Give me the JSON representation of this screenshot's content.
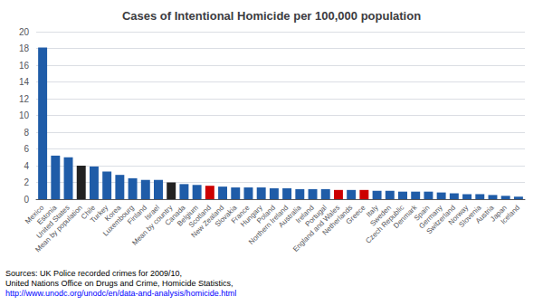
{
  "chart_data": {
    "type": "bar",
    "title": "Cases of Intentional Homicide per 100,000 population",
    "categories": [
      "Mexico",
      "Estonia",
      "United States",
      "Mean by population",
      "Chile",
      "Turkey",
      "Korea",
      "Luxembourg",
      "Finland",
      "Israel",
      "Mean by country",
      "Canada",
      "Belgium",
      "Scotland",
      "New Zealand",
      "Slovakia",
      "France",
      "Hungary",
      "Poland",
      "Northern Ireland",
      "Australia",
      "Ireland",
      "Portugal",
      "England and Wales",
      "Netherlands",
      "Greece",
      "Italy",
      "Sweden",
      "Czech Republic",
      "Denmark",
      "Spain",
      "Germany",
      "Switzerland",
      "Norway",
      "Slovenia",
      "Austria",
      "Japan",
      "Iceland"
    ],
    "values": [
      18.1,
      5.2,
      5.0,
      4.0,
      3.9,
      3.3,
      2.9,
      2.5,
      2.3,
      2.3,
      2.0,
      1.8,
      1.7,
      1.6,
      1.5,
      1.4,
      1.4,
      1.4,
      1.3,
      1.3,
      1.2,
      1.2,
      1.2,
      1.1,
      1.1,
      1.1,
      1.0,
      1.0,
      0.9,
      0.9,
      0.9,
      0.8,
      0.7,
      0.6,
      0.6,
      0.5,
      0.4,
      0.3
    ],
    "colors": [
      "#1F5CA8",
      "#1F5CA8",
      "#1F5CA8",
      "#222222",
      "#1F5CA8",
      "#1F5CA8",
      "#1F5CA8",
      "#1F5CA8",
      "#1F5CA8",
      "#1F5CA8",
      "#222222",
      "#1F5CA8",
      "#1F5CA8",
      "#CC0000",
      "#1F5CA8",
      "#1F5CA8",
      "#1F5CA8",
      "#1F5CA8",
      "#1F5CA8",
      "#1F5CA8",
      "#1F5CA8",
      "#1F5CA8",
      "#1F5CA8",
      "#CC0000",
      "#1F5CA8",
      "#CC0000",
      "#1F5CA8",
      "#1F5CA8",
      "#1F5CA8",
      "#1F5CA8",
      "#1F5CA8",
      "#1F5CA8",
      "#1F5CA8",
      "#1F5CA8",
      "#1F5CA8",
      "#1F5CA8",
      "#1F5CA8",
      "#1F5CA8"
    ],
    "ylim": [
      0,
      20
    ],
    "yticks": [
      0,
      2,
      4,
      6,
      8,
      10,
      12,
      14,
      16,
      18,
      20
    ],
    "grid": true,
    "annotations": [
      {
        "text": "Sources: UK Police recorded crimes for 2009/10,",
        "color": "#000000"
      },
      {
        "text": "United Nations Office on Drugs and Crime, Homicide Statistics,",
        "color": "#000000"
      },
      {
        "text": "http://www.unodc.org/unodc/en/data-and-analysis/homicide.html",
        "color": "#0000FF"
      }
    ]
  }
}
